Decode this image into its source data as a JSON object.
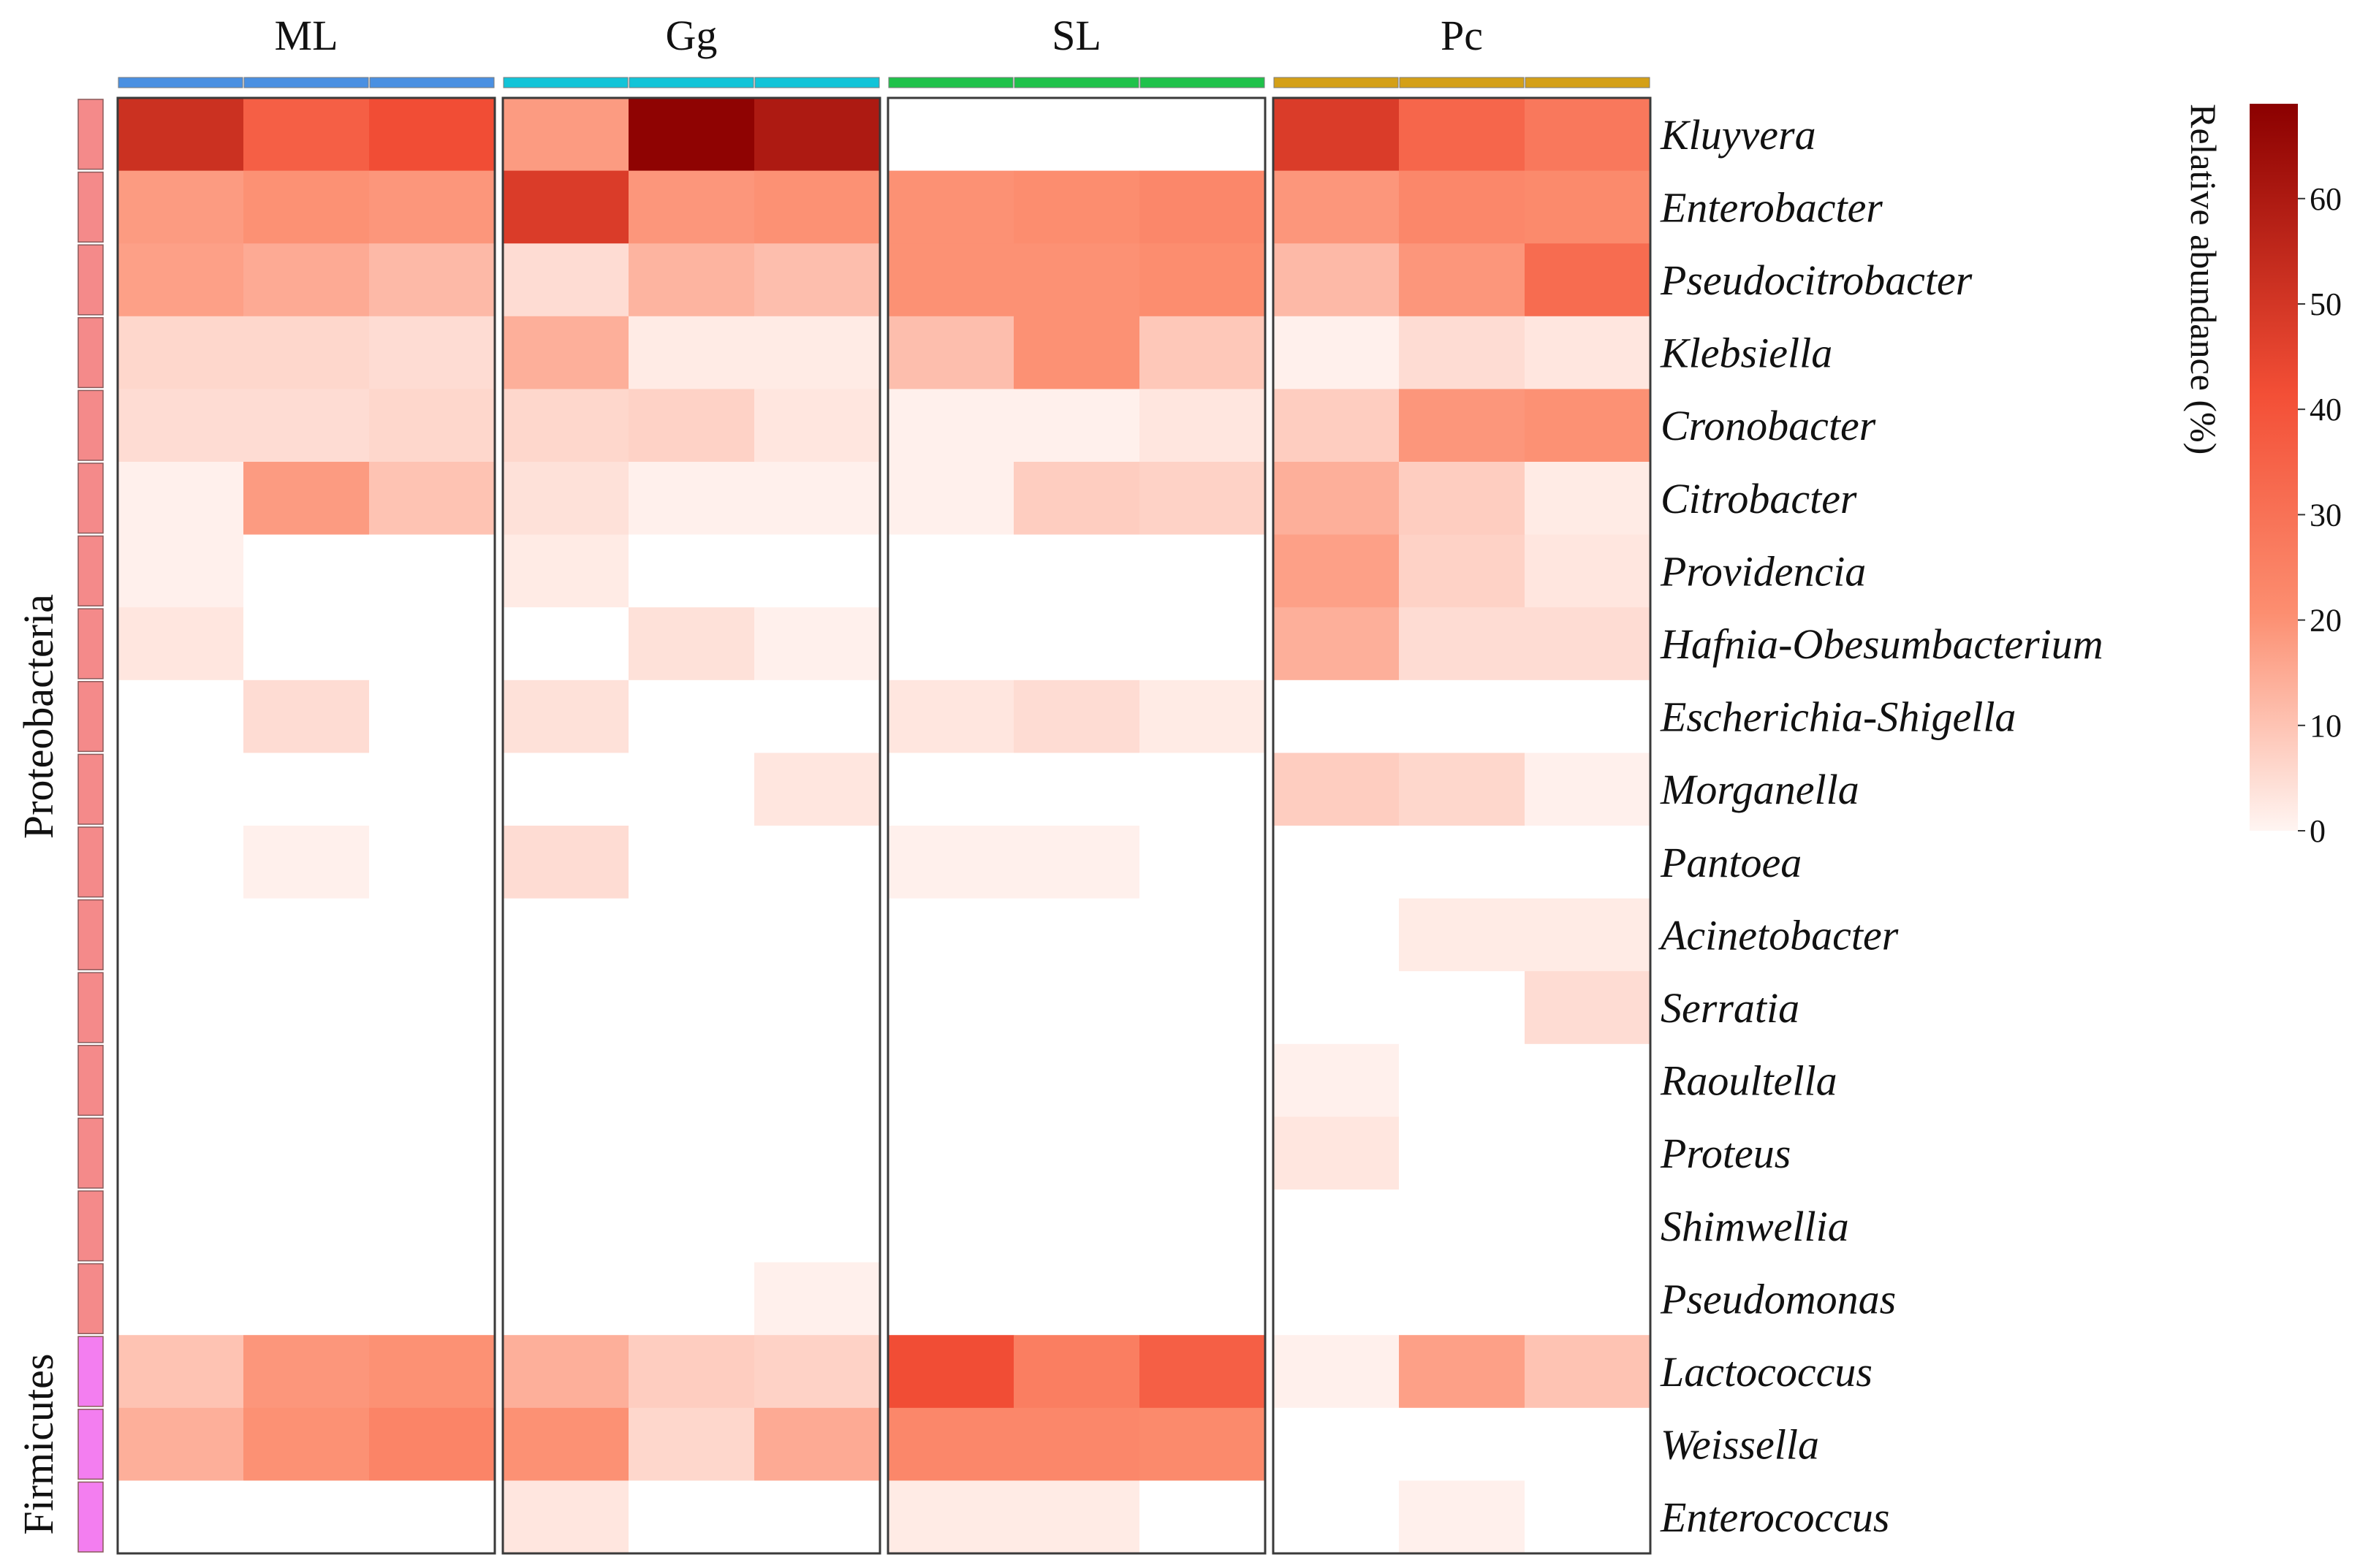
{
  "chart_data": {
    "type": "heatmap",
    "groups": [
      {
        "name": "ML",
        "color": "#4a90e2",
        "n": 3
      },
      {
        "name": "Gg",
        "color": "#12c4d8",
        "n": 3
      },
      {
        "name": "SL",
        "color": "#1fc24a",
        "n": 3
      },
      {
        "name": "Pc",
        "color": "#d4a017",
        "n": 3
      }
    ],
    "rows": [
      "Kluyvera",
      "Enterobacter",
      "Pseudocitrobacter",
      "Klebsiella",
      "Cronobacter",
      "Citrobacter",
      "Providencia",
      "Hafnia-Obesumbacterium",
      "Escherichia-Shigella",
      "Morganella",
      "Pantoea",
      "Acinetobacter",
      "Serratia",
      "Raoultella",
      "Proteus",
      "Shimwellia",
      "Pseudomonas",
      "Lactococcus",
      "Weissella",
      "Enterococcus"
    ],
    "phyla": [
      {
        "name": "Proteobacteria",
        "rows": 17,
        "color": "#f48a8a"
      },
      {
        "name": "Firmicutes",
        "rows": 3,
        "color": "#f37ef0"
      }
    ],
    "values": [
      [
        52,
        36,
        42,
        18,
        68,
        60,
        0,
        0,
        0,
        48,
        34,
        28
      ],
      [
        18,
        20,
        19,
        48,
        19,
        20,
        20,
        21,
        23,
        19,
        23,
        22
      ],
      [
        17,
        15,
        12,
        5,
        13,
        11,
        20,
        20,
        21,
        12,
        19,
        32
      ],
      [
        6,
        6,
        5,
        14,
        2,
        2,
        11,
        20,
        9,
        1,
        5,
        3
      ],
      [
        5,
        5,
        6,
        6,
        7,
        3,
        1,
        1,
        3,
        8,
        19,
        20
      ],
      [
        1,
        18,
        10,
        4,
        1,
        1,
        1,
        8,
        7,
        14,
        8,
        2
      ],
      [
        1,
        0,
        0,
        2,
        0,
        0,
        0,
        0,
        0,
        17,
        7,
        3
      ],
      [
        3,
        0,
        0,
        0,
        4,
        1,
        0,
        0,
        0,
        14,
        5,
        5
      ],
      [
        0,
        5,
        0,
        4,
        0,
        0,
        3,
        5,
        2,
        0,
        0,
        0
      ],
      [
        0,
        0,
        0,
        0,
        0,
        3,
        0,
        0,
        0,
        8,
        6,
        1
      ],
      [
        0,
        1,
        0,
        5,
        0,
        0,
        1,
        1,
        0,
        0,
        0,
        0
      ],
      [
        0,
        0,
        0,
        0,
        0,
        0,
        0,
        0,
        0,
        0,
        2,
        2
      ],
      [
        0,
        0,
        0,
        0,
        0,
        0,
        0,
        0,
        0,
        0,
        0,
        5
      ],
      [
        0,
        0,
        0,
        0,
        0,
        0,
        0,
        0,
        0,
        1,
        0,
        0
      ],
      [
        0,
        0,
        0,
        0,
        0,
        0,
        0,
        0,
        0,
        3,
        0,
        0
      ],
      [
        0,
        0,
        0,
        0,
        0,
        0,
        0,
        0,
        0,
        0,
        0,
        0
      ],
      [
        0,
        0,
        0,
        0,
        0,
        1,
        0,
        0,
        0,
        0,
        0,
        0
      ],
      [
        10,
        19,
        20,
        14,
        8,
        7,
        42,
        26,
        36,
        1,
        17,
        10
      ],
      [
        14,
        20,
        24,
        20,
        6,
        15,
        23,
        23,
        22,
        0,
        0,
        0
      ],
      [
        0,
        0,
        0,
        3,
        0,
        0,
        2,
        2,
        0,
        0,
        1,
        0
      ]
    ],
    "colorbar": {
      "title": "Relative abundance (%)",
      "min": 0,
      "max": 69,
      "ticks": [
        0,
        10,
        20,
        30,
        40,
        50,
        60
      ],
      "colors": [
        "#fff5f2",
        "#fc8e70",
        "#f34f36",
        "#8b0000"
      ]
    }
  }
}
